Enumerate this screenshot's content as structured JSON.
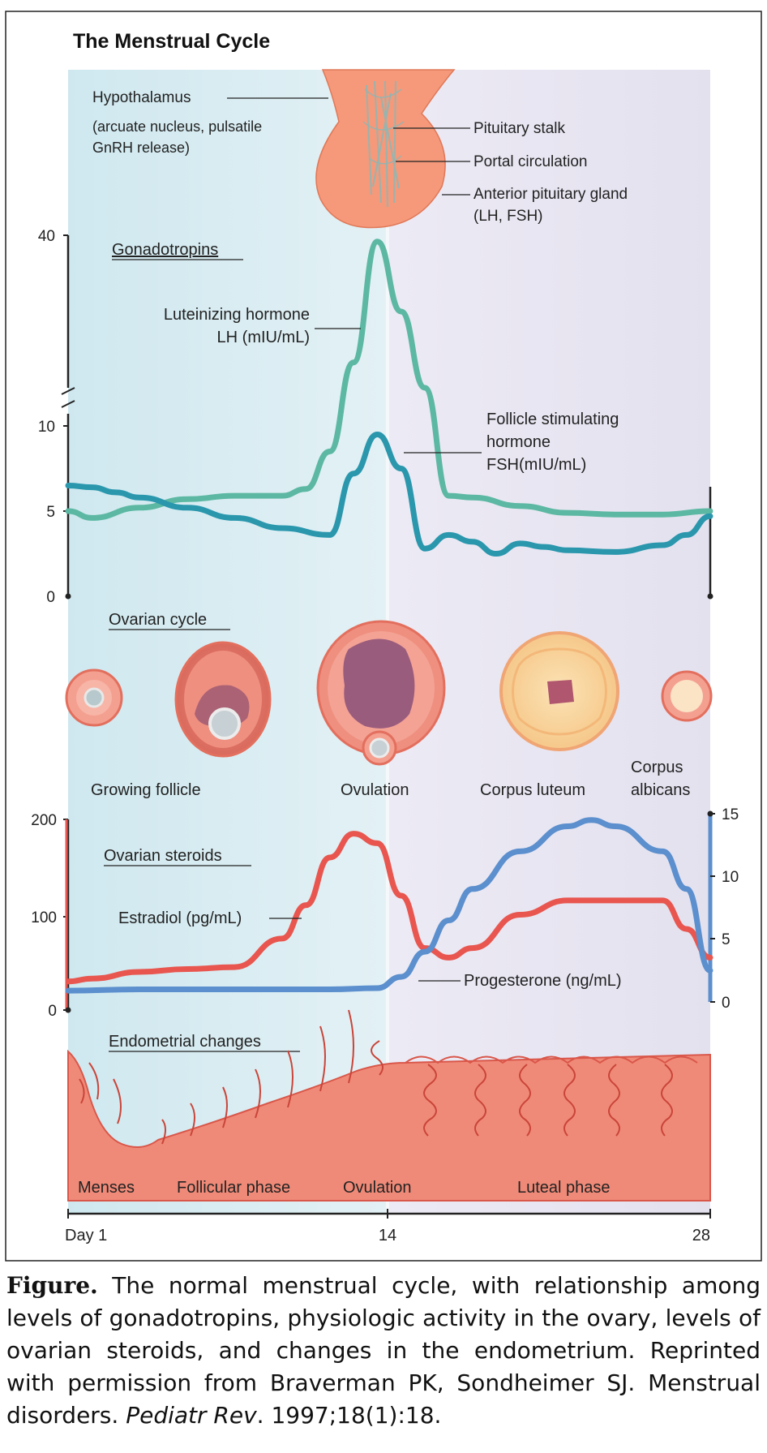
{
  "title": "The Menstrual Cycle",
  "anatomy": {
    "hypothalamus": "Hypothalamus",
    "hypothalamus_detail_1": "(arcuate nucleus, pulsatile",
    "hypothalamus_detail_2": "GnRH release)",
    "pituitary_stalk": "Pituitary stalk",
    "portal_circulation": "Portal circulation",
    "anterior_pituitary_1": "Anterior pituitary gland",
    "anterior_pituitary_2": "(LH, FSH)"
  },
  "sections": {
    "gonadotropins": "Gonadotropins",
    "ovarian_cycle": "Ovarian cycle",
    "ovarian_steroids": "Ovarian steroids",
    "endometrial_changes": "Endometrial changes"
  },
  "ovarian_labels": {
    "growing_follicle": "Growing follicle",
    "ovulation": "Ovulation",
    "corpus_luteum": "Corpus luteum",
    "corpus_albicans_1": "Corpus",
    "corpus_albicans_2": "albicans"
  },
  "endometrial_labels": {
    "menses": "Menses",
    "follicular": "Follicular phase",
    "ovulation": "Ovulation",
    "luteal": "Luteal phase"
  },
  "colors": {
    "lh": "#5cb8a2",
    "fsh": "#2a97ad",
    "estradiol": "#e8564f",
    "progesterone": "#5b8fcd",
    "follicular_bg": "#d6ecf2",
    "luteal_bg": "#e8e6f2",
    "tissue": "#f08a78",
    "tissue_dark": "#d9574a"
  },
  "chart_data": [
    {
      "type": "line",
      "x_ticks": [
        "Day 1",
        "14",
        "28"
      ],
      "x_range": [
        1,
        28
      ],
      "y_ticks_lower": [
        "0",
        "5",
        "10"
      ],
      "y_ticks_upper": [
        "40"
      ],
      "y_axis": "broken: 0-10 lower segment, 10-40 upper segment",
      "series": [
        {
          "name": "LH",
          "label_1": "Luteinizing hormone",
          "label_2": "LH (mIU/mL)",
          "x": [
            1,
            2,
            4,
            6,
            8,
            10,
            11,
            12,
            13,
            14,
            15,
            16,
            17,
            18,
            20,
            22,
            24,
            26,
            28
          ],
          "y": [
            5,
            4.6,
            5.2,
            5.7,
            5.9,
            5.9,
            6.3,
            8.5,
            20,
            39,
            28,
            16,
            5.9,
            5.8,
            5.3,
            4.9,
            4.8,
            4.8,
            5
          ]
        },
        {
          "name": "FSH",
          "label_1": "Follicle stimulating",
          "label_2": "hormone",
          "label_3": "FSH(mIU/mL)",
          "x": [
            1,
            2,
            3,
            4,
            6,
            8,
            10,
            12,
            13,
            14,
            15,
            16,
            17,
            18,
            19,
            20,
            21,
            22,
            24,
            26,
            27,
            28
          ],
          "y": [
            6.5,
            6.4,
            6.1,
            5.8,
            5.2,
            4.6,
            4,
            3.6,
            7.2,
            9.5,
            7.5,
            2.8,
            3.6,
            3.2,
            2.5,
            3.1,
            2.9,
            2.7,
            2.6,
            3,
            3.6,
            4.7
          ]
        }
      ]
    },
    {
      "type": "line",
      "x_ticks": [
        "Day 1",
        "14",
        "28"
      ],
      "x_range": [
        1,
        28
      ],
      "y_left_ticks": [
        "0",
        "100",
        "200"
      ],
      "y_left_range": [
        0,
        200
      ],
      "y_right_ticks": [
        "0",
        "5",
        "10",
        "15"
      ],
      "y_right_range": [
        0,
        15
      ],
      "series": [
        {
          "name": "Estradiol",
          "label": "Estradiol (pg/mL)",
          "axis": "left",
          "x": [
            1,
            2,
            4,
            6,
            8,
            10,
            11,
            12,
            13,
            14,
            15,
            16,
            17,
            18,
            20,
            22,
            24,
            26,
            27,
            28
          ],
          "y": [
            30,
            33,
            40,
            43,
            45,
            75,
            110,
            160,
            185,
            175,
            120,
            65,
            55,
            65,
            100,
            115,
            115,
            115,
            85,
            55
          ]
        },
        {
          "name": "Progesterone",
          "label": "Progesterone (ng/mL)",
          "axis": "right",
          "x": [
            1,
            4,
            8,
            12,
            14,
            15,
            16,
            17,
            18,
            20,
            22,
            23,
            24,
            26,
            27,
            28
          ],
          "y": [
            0.9,
            1,
            1,
            1,
            1.1,
            2,
            4,
            6.5,
            9,
            12,
            14,
            14.5,
            14,
            12,
            9,
            2.5
          ]
        }
      ]
    }
  ],
  "caption": {
    "label": "Figure.",
    "text": " The normal menstrual cycle, with relationship among levels of gonadotropins, physiologic activity in the ovary, levels of ovarian steroids, and changes in the endometrium. Reprinted with permission from Braverman PK, Sondheimer SJ. Menstrual disorders. ",
    "journal": "Pediatr Rev",
    "citation_end": ". 1997;18(1):18."
  }
}
